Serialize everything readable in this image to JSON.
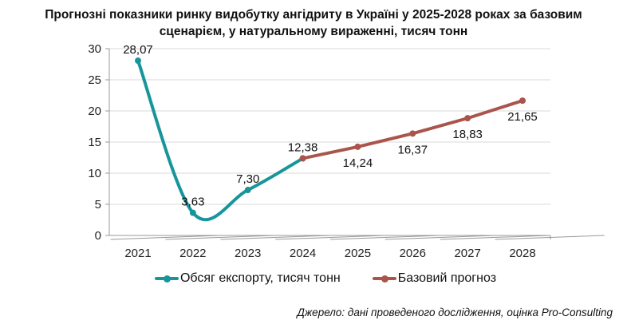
{
  "chart_data": {
    "type": "line",
    "title": [
      "Прогнозні показники ринку видобутку ангідриту в Україні у 2025-2028 роках за базовим",
      "сценарієм, у натуральному вираженні, тисяч тонн"
    ],
    "categories": [
      "2021",
      "2022",
      "2023",
      "2024",
      "2025",
      "2026",
      "2027",
      "2028"
    ],
    "ylim": [
      0,
      30
    ],
    "yticks": [
      0,
      5,
      10,
      15,
      20,
      25,
      30
    ],
    "grid": true,
    "legend_position": "bottom",
    "series": [
      {
        "name": "Обсяг експорту, тисяч тонн",
        "color": "#17959B",
        "smooth": true,
        "x": [
          "2021",
          "2022",
          "2023",
          "2024"
        ],
        "values": [
          28.07,
          3.63,
          7.3,
          12.38
        ],
        "labels": [
          "28,07",
          "3,63",
          "7,30",
          "12,38"
        ]
      },
      {
        "name": "Базовий прогноз",
        "color": "#A9554B",
        "smooth": false,
        "x": [
          "2024",
          "2025",
          "2026",
          "2027",
          "2028"
        ],
        "values": [
          12.38,
          14.24,
          16.37,
          18.83,
          21.65
        ],
        "labels": [
          null,
          "14,24",
          "16,37",
          "18,83",
          "21,65"
        ]
      }
    ]
  },
  "source": "Джерело: дані проведеного дослідження, оцінка Pro-Consulting"
}
